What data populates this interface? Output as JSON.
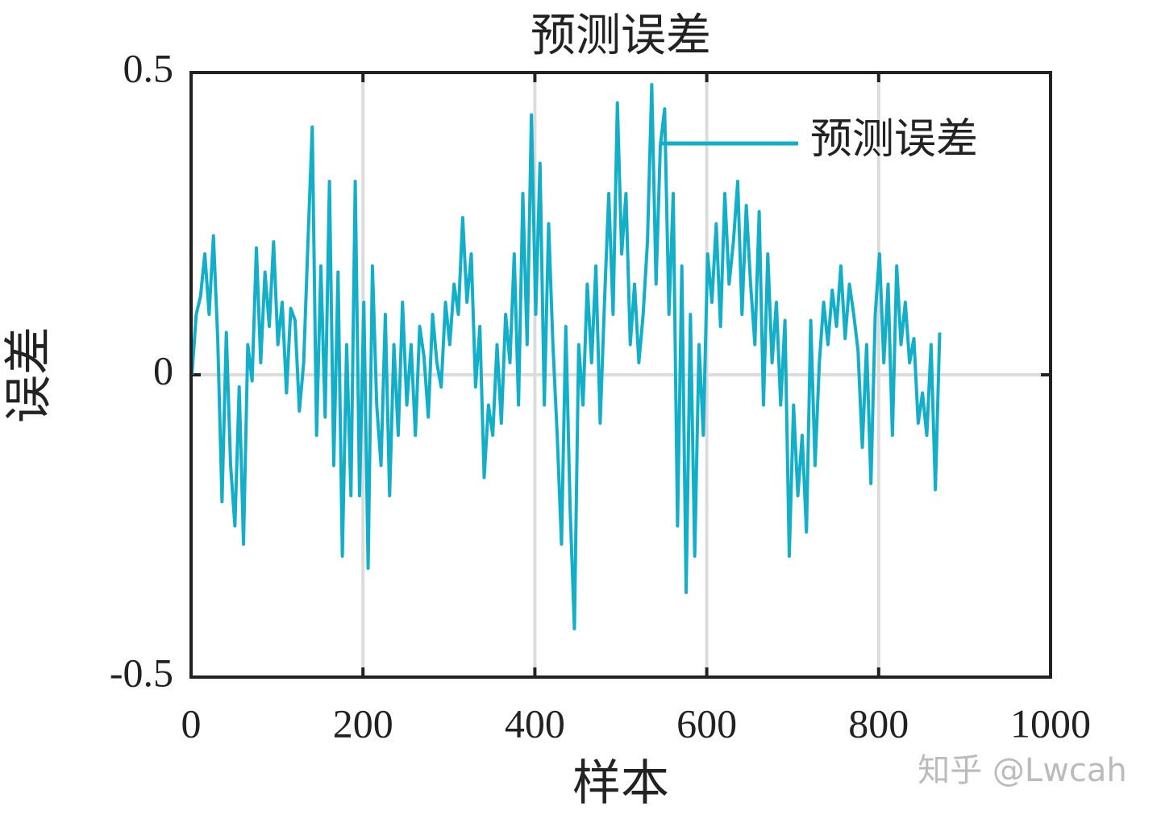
{
  "chart_data": {
    "type": "line",
    "title": "预测误差",
    "xlabel": "样本",
    "ylabel": "误差",
    "watermark": "知乎 @Lwcah",
    "x": [
      1,
      6,
      11,
      16,
      21,
      26,
      31,
      36,
      41,
      46,
      51,
      56,
      61,
      66,
      71,
      76,
      81,
      86,
      91,
      96,
      101,
      106,
      111,
      116,
      121,
      126,
      131,
      136,
      141,
      146,
      151,
      156,
      161,
      166,
      171,
      176,
      181,
      186,
      191,
      196,
      201,
      206,
      211,
      216,
      221,
      226,
      231,
      236,
      241,
      246,
      251,
      256,
      261,
      266,
      271,
      276,
      281,
      286,
      291,
      296,
      301,
      306,
      311,
      316,
      321,
      326,
      331,
      336,
      341,
      346,
      351,
      356,
      361,
      366,
      371,
      376,
      381,
      386,
      391,
      396,
      401,
      406,
      411,
      416,
      421,
      426,
      431,
      436,
      441,
      446,
      451,
      456,
      461,
      466,
      471,
      476,
      481,
      486,
      491,
      496,
      501,
      506,
      511,
      516,
      521,
      526,
      531,
      536,
      541,
      546,
      551,
      556,
      561,
      566,
      571,
      576,
      581,
      586,
      591,
      596,
      601,
      606,
      611,
      616,
      621,
      626,
      631,
      636,
      641,
      646,
      651,
      656,
      661,
      666,
      671,
      676,
      681,
      686,
      691,
      696,
      701,
      706,
      711,
      716,
      721,
      726,
      731,
      736,
      741,
      746,
      751,
      756,
      761,
      766,
      771,
      776,
      781,
      786,
      791,
      796,
      801,
      806,
      811,
      816,
      821,
      826,
      831,
      836,
      841,
      846,
      851,
      856,
      861,
      866,
      871
    ],
    "series": [
      {
        "name": "预测误差",
        "color": "#13afc8",
        "values": [
          0,
          0.1,
          0.13,
          0.2,
          0.1,
          0.23,
          0.06,
          -0.21,
          0.07,
          -0.15,
          -0.25,
          -0.02,
          -0.28,
          0.05,
          -0.01,
          0.21,
          0.02,
          0.17,
          0.08,
          0.22,
          0.05,
          0.12,
          -0.03,
          0.11,
          0.09,
          -0.06,
          0.02,
          0.22,
          0.41,
          -0.1,
          0.18,
          -0.07,
          0.32,
          -0.15,
          0.17,
          -0.3,
          0.05,
          -0.2,
          0.32,
          -0.2,
          0.12,
          -0.32,
          0.18,
          -0.05,
          -0.15,
          0.1,
          -0.2,
          0.05,
          -0.1,
          0.12,
          -0.05,
          0.05,
          -0.1,
          0.08,
          0.03,
          -0.07,
          0.1,
          0.02,
          -0.02,
          0.12,
          0.05,
          0.15,
          0.1,
          0.26,
          0.12,
          0.2,
          -0.02,
          0.08,
          -0.17,
          -0.05,
          -0.1,
          0.05,
          -0.08,
          0.1,
          0.02,
          0.2,
          -0.05,
          0.3,
          0.05,
          0.43,
          0.1,
          0.35,
          -0.05,
          0.25,
          0.05,
          -0.1,
          -0.28,
          0.08,
          -0.22,
          -0.42,
          0.05,
          -0.05,
          0.15,
          0.02,
          0.18,
          -0.08,
          0.12,
          0.3,
          0.1,
          0.45,
          0.2,
          0.3,
          0.05,
          0.15,
          0.02,
          0.1,
          0.22,
          0.48,
          0.15,
          0.38,
          0.44,
          0.1,
          0.3,
          -0.25,
          0.18,
          -0.36,
          0.1,
          -0.3,
          0.05,
          -0.1,
          0.2,
          0.12,
          0.25,
          0.08,
          0.3,
          0.15,
          0.22,
          0.32,
          0.1,
          0.28,
          0.15,
          0.05,
          0.27,
          -0.05,
          0.2,
          0.02,
          0.12,
          -0.05,
          0.09,
          -0.3,
          -0.05,
          -0.2,
          -0.1,
          -0.26,
          0.09,
          -0.15,
          0.02,
          0.12,
          0.05,
          0.14,
          0.08,
          0.18,
          0.06,
          0.15,
          0.1,
          0.04,
          -0.12,
          0.05,
          -0.18,
          0.1,
          0.2,
          0.02,
          0.15,
          -0.1,
          0.18,
          0.05,
          0.12,
          0.02,
          0.06,
          -0.08,
          -0.03,
          -0.1,
          0.05,
          -0.19,
          0.07
        ]
      }
    ],
    "xlim": [
      0,
      1000
    ],
    "xticks": [
      0,
      200,
      400,
      600,
      800,
      1000
    ],
    "ylim": [
      -0.5,
      0.5
    ],
    "yticks": [
      -0.5,
      0,
      0.5
    ],
    "grid": true,
    "legend": "upper right"
  }
}
